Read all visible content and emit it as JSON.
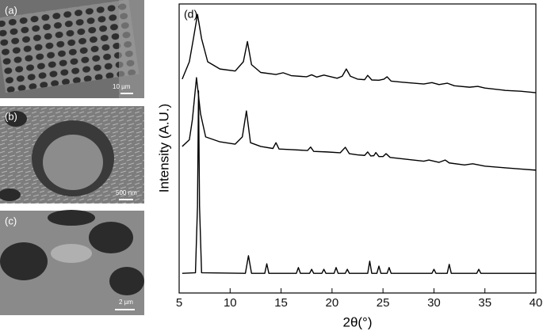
{
  "panels": {
    "a": {
      "label": "(a)",
      "scale": "10 µm"
    },
    "b": {
      "label": "(b)",
      "scale": "500 nm"
    },
    "c": {
      "label": "(c)",
      "scale": "2 µm"
    }
  },
  "chart_data": {
    "type": "line",
    "label": "(d)",
    "xlabel": "2θ(°)",
    "ylabel": "Intensity (A.U.)",
    "xlim": [
      5,
      40
    ],
    "xticks": [
      5,
      10,
      15,
      20,
      25,
      30,
      35,
      40
    ],
    "ylim": [
      0,
      100
    ],
    "series": [
      {
        "color": "#000000",
        "x": [
          5.3,
          6.0,
          6.4,
          6.8,
          7.2,
          7.8,
          9,
          10.5,
          11.3,
          11.7,
          12.1,
          13,
          14.5,
          15.2,
          16,
          17.5,
          18,
          18.5,
          19.2,
          20.5,
          21.0,
          21.4,
          21.8,
          22.5,
          23.2,
          23.5,
          23.9,
          24.6,
          25.1,
          25.4,
          25.8,
          27,
          29,
          29.8,
          30.5,
          31.3,
          32,
          33.5,
          34.3,
          35,
          37,
          38.5,
          40
        ],
        "values": [
          74,
          80,
          88,
          96.4,
          88,
          80,
          77.5,
          76.8,
          80,
          87,
          79,
          76.3,
          75.6,
          76.2,
          75.2,
          74.8,
          75.5,
          74.7,
          75.4,
          74.3,
          75,
          77.5,
          75,
          74,
          73.8,
          75.3,
          73.7,
          73.6,
          74,
          74.8,
          73.3,
          72.9,
          72.3,
          72.8,
          72.1,
          72.6,
          71.7,
          71.2,
          71.5,
          70.9,
          70.1,
          69.8,
          69.3
        ]
      },
      {
        "color": "#000000",
        "x": [
          5.3,
          6.0,
          6.3,
          6.7,
          7.1,
          7.6,
          9,
          10.5,
          11.2,
          11.6,
          12.0,
          13,
          14.2,
          14.5,
          14.8,
          16,
          17.6,
          17.9,
          18.2,
          19.5,
          20.8,
          21.3,
          21.7,
          22.5,
          23.2,
          23.5,
          23.8,
          24.1,
          24.3,
          24.6,
          25.0,
          25.3,
          25.7,
          27,
          29,
          29.5,
          30.5,
          31.1,
          31.5,
          33,
          33.8,
          35,
          37,
          38.5,
          40
        ],
        "values": [
          50.7,
          53,
          60,
          74.5,
          62,
          54,
          52.3,
          51.5,
          54,
          63,
          52,
          50.7,
          50,
          52,
          49.8,
          49.6,
          49.3,
          50.5,
          49,
          48.8,
          48.5,
          50.4,
          48.2,
          47.8,
          47.6,
          48.8,
          47.4,
          47.5,
          48.6,
          47.2,
          47.2,
          48.2,
          46.9,
          46.4,
          45.6,
          46,
          45.2,
          46,
          45,
          44.3,
          44.7,
          43.9,
          43.3,
          42.9,
          42.5
        ]
      },
      {
        "color": "#000000",
        "x": [
          5.3,
          6.6,
          6.8,
          6.9,
          7.0,
          7.2,
          11.5,
          11.8,
          12.1,
          13.4,
          13.6,
          13.8,
          16.5,
          16.7,
          16.9,
          17.8,
          18.0,
          18.2,
          19.0,
          19.2,
          19.4,
          20.2,
          20.4,
          20.6,
          21.3,
          21.5,
          21.7,
          23.5,
          23.7,
          23.9,
          24.4,
          24.6,
          24.8,
          25.4,
          25.6,
          25.8,
          29.8,
          30.0,
          30.2,
          31.3,
          31.5,
          31.7,
          34.2,
          34.4,
          34.6,
          40
        ],
        "values": [
          6.8,
          7,
          30,
          69.9,
          30,
          7,
          6.8,
          12.9,
          6.8,
          6.8,
          10.1,
          6.8,
          6.8,
          8.8,
          6.8,
          6.8,
          8.2,
          6.8,
          6.8,
          8.2,
          6.8,
          6.8,
          8.8,
          6.8,
          6.8,
          8.2,
          6.8,
          6.8,
          11,
          6.8,
          6.8,
          9.3,
          6.8,
          6.8,
          8.8,
          6.8,
          6.8,
          8.2,
          6.8,
          6.8,
          9.9,
          6.8,
          6.8,
          8.2,
          6.8,
          6.8
        ]
      }
    ]
  }
}
